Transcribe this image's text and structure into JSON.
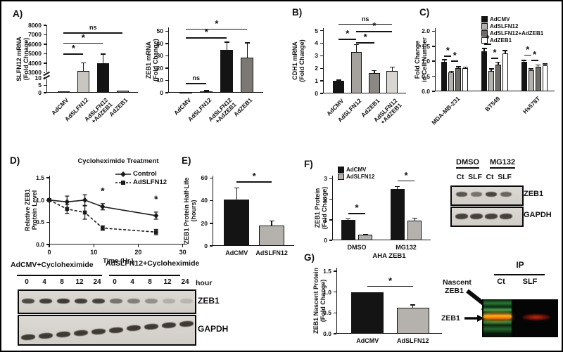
{
  "panels": {
    "a": {
      "label": "A)"
    },
    "b": {
      "label": "B)"
    },
    "c": {
      "label": "C)"
    },
    "d": {
      "label": "D)",
      "blot": {
        "group1": "AdCMV+Cycloheximide",
        "group2": "AdSLFN12+Cycloheximide",
        "lanes": [
          "0",
          "4",
          "8",
          "12",
          "24",
          "0",
          "4",
          "8",
          "12",
          "24"
        ],
        "lane_unit": "hour",
        "band1_label": "ZEB1",
        "band2_label": "GAPDH"
      }
    },
    "e": {
      "label": "E)"
    },
    "f": {
      "label": "F)",
      "blot": {
        "group1": "DMSO",
        "group2": "MG132",
        "lanes": [
          "Ct",
          "SLF",
          "Ct",
          "SLF"
        ],
        "band1_label": "ZEB1",
        "band2_label": "GAPDH"
      }
    },
    "g": {
      "label": "G)",
      "ip_blot": {
        "header": "IP",
        "lanes": [
          "Ct",
          "SLF"
        ],
        "nascent_line1": "Nascent",
        "nascent_line2": "ZEB1",
        "zeb1_label": "ZEB1"
      }
    }
  },
  "colors": {
    "black_bar": "#141414",
    "light_gray_bar": "#b5b2ae",
    "dark_gray_bar": "#6f6c68",
    "white_bar": "#ffffff",
    "gel_green": "#46c85e",
    "gel_orange": "#ff9100",
    "gel_red": "#d42a12"
  },
  "chart_data": [
    {
      "id": "a1",
      "type": "bar",
      "ylabel": [
        "SLFN12 mRNA",
        "(Fold Chnage)"
      ],
      "categories": [
        "AdCMV",
        "AdSLFN12",
        "AdSLFN12\n+AdZEB1",
        "AdZEB1"
      ],
      "values": [
        1,
        3200,
        4000,
        1.3
      ],
      "errors": [
        0,
        800,
        950,
        0
      ],
      "bar_colors": [
        "#141414",
        "#c9c6c2",
        "#141414",
        "#8a8782"
      ],
      "axis_break": {
        "lower": [
          0,
          10
        ],
        "upper": [
          3000,
          8000
        ],
        "lower_ticks": [
          "0",
          "5",
          "10"
        ],
        "upper_ticks": [
          "3000",
          "4000",
          "5000",
          "6000",
          "7000",
          "8000"
        ]
      },
      "significance": [
        {
          "x1": 0,
          "x2": 1,
          "y": 5000,
          "label": "*"
        },
        {
          "x1": 0,
          "x2": 2,
          "y": 6150,
          "label": "*"
        },
        {
          "x1": 0,
          "x2": 3,
          "y": 7250,
          "label": "ns"
        }
      ],
      "x_rotated": true
    },
    {
      "id": "a2",
      "type": "bar",
      "ylabel": [
        "ZEB1 mRNA",
        "(Fold Change)"
      ],
      "categories": [
        "AdCMV",
        "AdSLFN12",
        "AdSLFN12\n+AdZEB1",
        "AdZEB1"
      ],
      "values": [
        0.8,
        1.2,
        35,
        28.5
      ],
      "errors": [
        0,
        0.5,
        6,
        12
      ],
      "bar_colors": [
        "#141414",
        "#b3b0ac",
        "#141414",
        "#7c7975"
      ],
      "ylim": [
        0,
        53
      ],
      "yticks": [
        "0",
        "10",
        "20",
        "30",
        "40",
        "50"
      ],
      "significance": [
        {
          "x1": 0,
          "x2": 1,
          "y": 8,
          "label": "ns"
        },
        {
          "x1": 0,
          "x2": 2,
          "y": 45,
          "label": "*"
        },
        {
          "x1": 0,
          "x2": 3,
          "y": 52,
          "label": "*"
        }
      ],
      "x_rotated": true
    },
    {
      "id": "b",
      "type": "bar",
      "ylabel": [
        "CDH1 mRNA",
        "(Fold Change)"
      ],
      "categories": [
        "AdCMV",
        "AdSLFN12",
        "AdZEB1",
        "AdSLFN12\n+AdZEB1"
      ],
      "values": [
        1.0,
        3.3,
        1.6,
        1.8
      ],
      "errors": [
        0.06,
        0.6,
        0.22,
        0.28
      ],
      "bar_colors": [
        "#141414",
        "#a5a19d",
        "#8b8783",
        "#d9d6d2"
      ],
      "ylim": [
        0,
        5.2
      ],
      "yticks": [
        "0",
        "1",
        "2",
        "3",
        "4",
        "5"
      ],
      "significance": [
        {
          "x1": 0,
          "x2": 1,
          "y": 4.35,
          "label": "*"
        },
        {
          "x1": 1,
          "x2": 2,
          "y": 4.08,
          "label": "*"
        },
        {
          "x1": 1,
          "x2": 3,
          "y": 4.95,
          "label": "*"
        },
        {
          "x1": 0,
          "x2": 3,
          "y": 5.55,
          "label": "ns"
        }
      ],
      "x_rotated": true
    },
    {
      "id": "c",
      "type": "grouped_bar",
      "ylabel": [
        "Fold Change",
        "in Cell Number"
      ],
      "categories": [
        "MDA-MB-231",
        "BT549",
        "Hs578T"
      ],
      "series": [
        {
          "name": "AdCMV",
          "color": "#141414",
          "values": [
            0.98,
            1.32,
            0.97
          ],
          "errors": [
            0.07,
            0.1,
            0.06
          ]
        },
        {
          "name": "AdSLFN12",
          "color": "#b5b2ae",
          "values": [
            0.63,
            0.67,
            0.71
          ],
          "errors": [
            0.03,
            0.08,
            0.04
          ]
        },
        {
          "name": "AdSLFN12+AdZEB1",
          "color": "#6f6c68",
          "values": [
            0.78,
            0.88,
            0.82
          ],
          "errors": [
            0.04,
            0.09,
            0.05
          ]
        },
        {
          "name": "AdZEB1",
          "color": "#ffffff",
          "values": [
            0.76,
            1.26,
            0.86
          ],
          "errors": [
            0.05,
            0.09,
            0.05
          ]
        }
      ],
      "ylim": [
        0,
        2.1
      ],
      "yticks": [
        "0.0",
        "0.5",
        "1.0",
        "1.5",
        "2.0"
      ],
      "significance": [
        {
          "x1": 0,
          "x2": 1,
          "y": 1.18,
          "label": "*"
        },
        {
          "x1": 1,
          "x2": 2,
          "y": 1.02,
          "label": "*"
        },
        {
          "x1": 4,
          "x2": 5,
          "y": 1.58,
          "label": "*"
        },
        {
          "x1": 5,
          "x2": 6,
          "y": 1.12,
          "label": "*"
        },
        {
          "x1": 8,
          "x2": 9,
          "y": 1.22,
          "label": "*"
        },
        {
          "x1": 9,
          "x2": 10,
          "y": 1.04,
          "label": "*"
        }
      ],
      "x_rotated": true,
      "legend": true
    },
    {
      "id": "d",
      "type": "line",
      "title": "Cycloheximide Treatment",
      "ylabel": [
        "Relative ZEB1",
        "Protein Level"
      ],
      "xlabel": "Time (Hr.)",
      "x": [
        0,
        4,
        8,
        12,
        24
      ],
      "series": [
        {
          "name": "Control",
          "marker": "diamond",
          "dash": false,
          "y": [
            1.0,
            0.96,
            1.0,
            0.85,
            0.65
          ],
          "errors": [
            0.02,
            0.13,
            0.12,
            0.07,
            0.08
          ]
        },
        {
          "name": "AdSLFN12",
          "marker": "square",
          "dash": true,
          "y": [
            1.0,
            0.8,
            0.72,
            0.37,
            0.28
          ],
          "errors": [
            0.02,
            0.1,
            0.15,
            0.05,
            0.06
          ]
        }
      ],
      "xlim": [
        0,
        31
      ],
      "ylim": [
        0,
        1.55
      ],
      "xticks": [
        "0",
        "10",
        "20",
        "30"
      ],
      "yticks": [
        "0.0",
        "0.5",
        "1.0",
        "1.5"
      ],
      "annotations": [
        {
          "x": 12,
          "y": 1.13,
          "label": "*"
        },
        {
          "x": 24,
          "y": 0.95,
          "label": "*"
        }
      ],
      "legend": true
    },
    {
      "id": "e",
      "type": "bar",
      "ylabel": [
        "ZEB1 Protein Half-Life",
        "(hours)"
      ],
      "categories": [
        "AdCMV",
        "AdSLFN12"
      ],
      "values": [
        41,
        18
      ],
      "errors": [
        10,
        4
      ],
      "bar_colors": [
        "#141414",
        "#b5b2ae"
      ],
      "ylim": [
        0,
        62
      ],
      "yticks": [
        "0",
        "20",
        "40",
        "60"
      ],
      "significance": [
        {
          "x1": 0,
          "x2": 1,
          "y": 57,
          "label": "*"
        }
      ],
      "x_rotated": false
    },
    {
      "id": "f",
      "type": "grouped_bar",
      "ylabel": [
        "ZEB1 Protein",
        "(Fold Change)"
      ],
      "categories": [
        "DMSO",
        "MG132"
      ],
      "series": [
        {
          "name": "AdCMV",
          "color": "#141414",
          "values": [
            1.0,
            2.5
          ],
          "errors": [
            0.04,
            0.12
          ]
        },
        {
          "name": "AdSLFN12",
          "color": "#b5b2ae",
          "values": [
            0.27,
            0.95
          ],
          "errors": [
            0.03,
            0.13
          ]
        }
      ],
      "ylim": [
        0,
        3.15
      ],
      "yticks": [
        "0",
        "1",
        "2",
        "3"
      ],
      "significance": [
        {
          "x1": 0,
          "x2": 1,
          "y": 1.32,
          "label": "*"
        },
        {
          "x1": 2,
          "x2": 3,
          "y": 2.92,
          "label": "*"
        }
      ],
      "x_rotated": false,
      "legend": true
    },
    {
      "id": "g",
      "type": "bar",
      "title": "AHA ZEB1",
      "ylabel": [
        "ZEB1 Nascent Protein",
        "(Fold Change)"
      ],
      "categories": [
        "AdCMV",
        "AdSLFN12"
      ],
      "values": [
        1.0,
        0.62
      ],
      "errors": [
        0,
        0.07
      ],
      "bar_colors": [
        "#141414",
        "#b5b2ae"
      ],
      "ylim": [
        0,
        1.58
      ],
      "yticks": [
        "0.0",
        "0.5",
        "1.0",
        "1.5"
      ],
      "significance": [
        {
          "x1": 0,
          "x2": 1,
          "y": 1.15,
          "label": "*"
        }
      ],
      "x_rotated": false
    }
  ]
}
